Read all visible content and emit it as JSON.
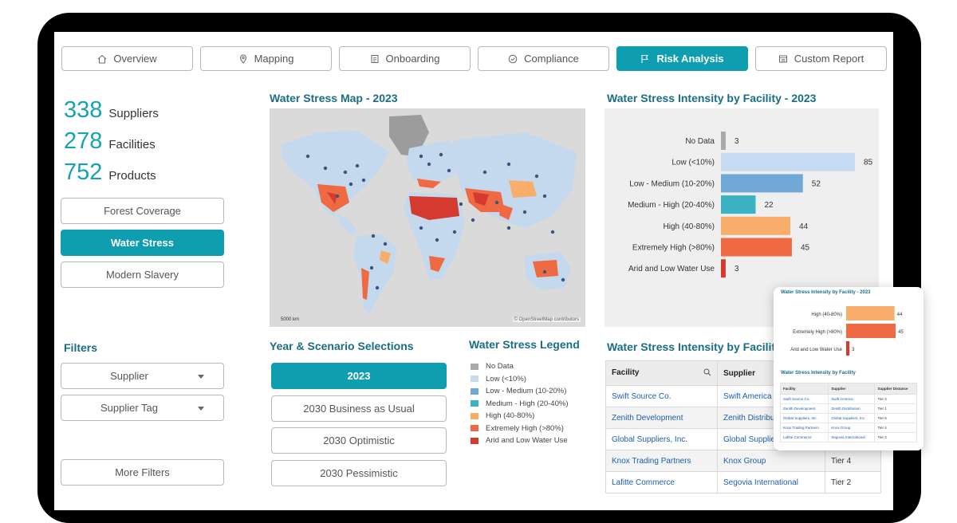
{
  "tabs": [
    {
      "label": "Overview",
      "active": false
    },
    {
      "label": "Mapping",
      "active": false
    },
    {
      "label": "Onboarding",
      "active": false
    },
    {
      "label": "Compliance",
      "active": false
    },
    {
      "label": "Risk Analysis",
      "active": true
    },
    {
      "label": "Custom Report",
      "active": false
    }
  ],
  "stats": [
    {
      "value": "338",
      "label": "Suppliers"
    },
    {
      "value": "278",
      "label": "Facilities"
    },
    {
      "value": "752",
      "label": "Products"
    }
  ],
  "risk_buttons": [
    {
      "label": "Forest Coverage",
      "active": false
    },
    {
      "label": "Water Stress",
      "active": true
    },
    {
      "label": "Modern Slavery",
      "active": false
    }
  ],
  "filters": {
    "title": "Filters",
    "supplier": "Supplier",
    "supplier_tag": "Supplier Tag",
    "more": "More Filters"
  },
  "map": {
    "title": "Water Stress Map - 2023",
    "scale": "5000 km",
    "attribution": "© OpenStreetMap contributors"
  },
  "year": {
    "title": "Year & Scenario Selections",
    "options": [
      {
        "label": "2023",
        "active": true
      },
      {
        "label": "2030 Business as Usual",
        "active": false
      },
      {
        "label": "2030 Optimistic",
        "active": false
      },
      {
        "label": "2030 Pessimistic",
        "active": false
      }
    ]
  },
  "legend": {
    "title": "Water Stress Legend",
    "items": [
      {
        "label": "No Data",
        "color": "#aaaaaa"
      },
      {
        "label": "Low (<10%)",
        "color": "#c6daf2"
      },
      {
        "label": "Low - Medium (10-20%)",
        "color": "#70a9d8"
      },
      {
        "label": "Medium - High (20-40%)",
        "color": "#3cb2c2"
      },
      {
        "label": "High (40-80%)",
        "color": "#f8ad6a"
      },
      {
        "label": "Extremely High (>80%)",
        "color": "#ef6a42"
      },
      {
        "label": "Arid and Low Water Use",
        "color": "#d53a2e"
      }
    ]
  },
  "chart_data": {
    "type": "bar",
    "orientation": "horizontal",
    "title": "Water Stress Intensity by Facility - 2023",
    "categories": [
      "No Data",
      "Low (<10%)",
      "Low - Medium (10-20%)",
      "Medium - High (20-40%)",
      "High (40-80%)",
      "Extremely High (>80%)",
      "Arid and Low Water Use"
    ],
    "values": [
      3,
      85,
      52,
      22,
      44,
      45,
      3
    ],
    "colors": [
      "#a9a9a9",
      "#c6daf2",
      "#70a9d8",
      "#3cb2c2",
      "#f8ad6a",
      "#ef6a42",
      "#d53a2e"
    ],
    "xlim": [
      0,
      85
    ]
  },
  "table": {
    "title": "Water Stress Intensity by Facility",
    "headers": {
      "facility": "Facility",
      "supplier": "Supplier"
    },
    "rows": [
      {
        "facility": "Swift Source Co.",
        "supplier": "Swift America",
        "tier": ""
      },
      {
        "facility": "Zenith Development",
        "supplier": "Zenith Distribution",
        "tier": ""
      },
      {
        "facility": "Global Suppliers, Inc.",
        "supplier": "Global Suppliers Inc.",
        "tier": ""
      },
      {
        "facility": "Knox Trading Partners",
        "supplier": "Knox Group",
        "tier": "Tier 4"
      },
      {
        "facility": "Lafitte Commerce",
        "supplier": "Segovia International",
        "tier": "Tier 2"
      }
    ]
  },
  "overlay": {
    "chart_title": "Water Stress Intensity by Facility - 2023",
    "bars": [
      {
        "label": "High (40-80%)",
        "value": 44,
        "color": "#f8ad6a"
      },
      {
        "label": "Extremely High (>80%)",
        "value": 45,
        "color": "#ef6a42"
      },
      {
        "label": "Arid and Low Water Use",
        "value": 3,
        "color": "#d53a2e"
      }
    ],
    "table_title": "Water Stress Intensity by Facility",
    "headers": {
      "facility": "Facility",
      "supplier": "Supplier",
      "distance": "Supplier Distance"
    },
    "rows": [
      {
        "facility": "Swift Source Co.",
        "supplier": "Swift America",
        "tier": "Tier 2"
      },
      {
        "facility": "Zenith Development",
        "supplier": "Zenith Distribution",
        "tier": "Tier 1"
      },
      {
        "facility": "Global Suppliers, Inc.",
        "supplier": "Global Suppliers, Inc.",
        "tier": "Tier 6"
      },
      {
        "facility": "Knox Trading Partners",
        "supplier": "Knox Group",
        "tier": "Tier 4"
      },
      {
        "facility": "Lafitte Commerce",
        "supplier": "Segovia International",
        "tier": "Tier 2"
      }
    ]
  }
}
